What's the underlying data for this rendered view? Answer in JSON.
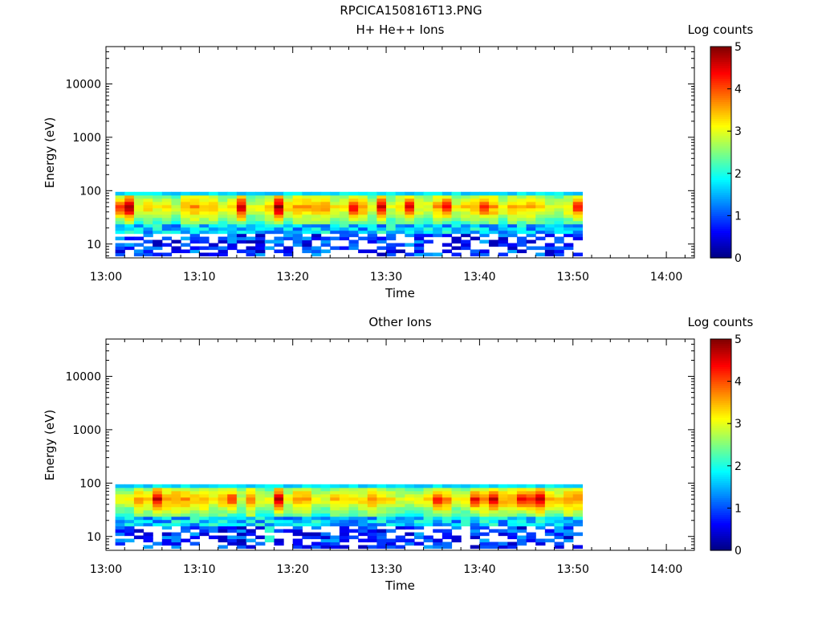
{
  "page_title": "RPCICA150816T13.PNG",
  "chart_data": [
    {
      "type": "heatmap",
      "title": "H+ He++ Ions",
      "xlabel": "Time",
      "ylabel": "Energy (eV)",
      "y_scale": "log",
      "ylim": [
        5.5,
        50000
      ],
      "xlim": [
        "13:00",
        "14:03"
      ],
      "x_ticks": [
        "13:00",
        "13:10",
        "13:20",
        "13:30",
        "13:40",
        "13:50",
        "14:00"
      ],
      "y_ticks": [
        "10",
        "100",
        "1000",
        "10000"
      ],
      "colorbar": {
        "label": "Log counts",
        "range": [
          0,
          5
        ],
        "ticks": [
          "0",
          "1",
          "2",
          "3",
          "4",
          "5"
        ]
      },
      "data_time_range": [
        "13:01",
        "13:51"
      ],
      "data_energy_range": [
        6,
        95
      ],
      "grid": false
    },
    {
      "type": "heatmap",
      "title": "Other Ions",
      "xlabel": "Time",
      "ylabel": "Energy (eV)",
      "y_scale": "log",
      "ylim": [
        5.5,
        50000
      ],
      "xlim": [
        "13:00",
        "14:03"
      ],
      "x_ticks": [
        "13:00",
        "13:10",
        "13:20",
        "13:30",
        "13:40",
        "13:50",
        "14:00"
      ],
      "y_ticks": [
        "10",
        "100",
        "1000",
        "10000"
      ],
      "colorbar": {
        "label": "Log counts",
        "range": [
          0,
          5
        ],
        "ticks": [
          "0",
          "1",
          "2",
          "3",
          "4",
          "5"
        ]
      },
      "data_time_range": [
        "13:01",
        "13:51"
      ],
      "data_energy_range": [
        6,
        95
      ],
      "grid": false
    }
  ]
}
